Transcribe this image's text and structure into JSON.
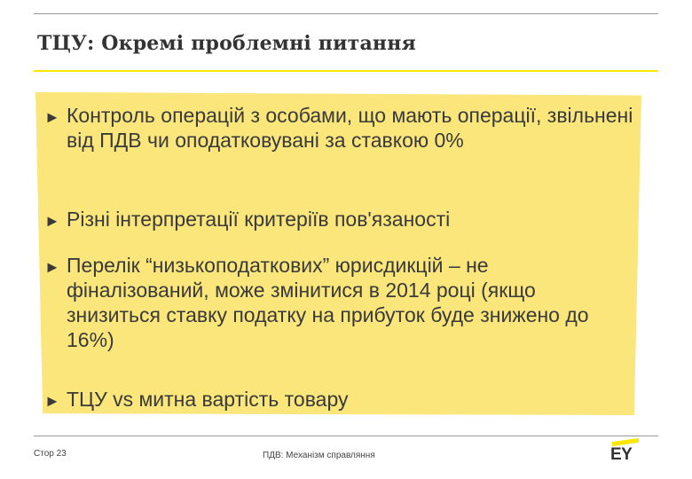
{
  "slide": {
    "title": "ТЦУ: Окремі проблемні питання",
    "bullet_glyph": "►",
    "bullets": [
      {
        "text": "Контроль операцій з особами, що мають операції, звільнені від ПДВ чи оподатковувані за ставкою 0%"
      },
      {
        "text": "Різні інтерпретації критеріїв пов'язаності"
      },
      {
        "text": "Перелік “низькоподаткових” юрисдикцій – не фіналізований, може змінитися в 2014 році (якщо знизиться ставку податку на прибуток буде знижено до 16%)"
      },
      {
        "text": "ТЦУ vs митна вартість товару"
      }
    ]
  },
  "footer": {
    "page_label": "Стор 23",
    "doc_title": "ПДВ: Механізм справляння",
    "logo_text": "EY"
  },
  "colors": {
    "accent_yellow": "#ffe600",
    "panel_yellow": "#fae67a",
    "text": "#3a3a3a"
  }
}
